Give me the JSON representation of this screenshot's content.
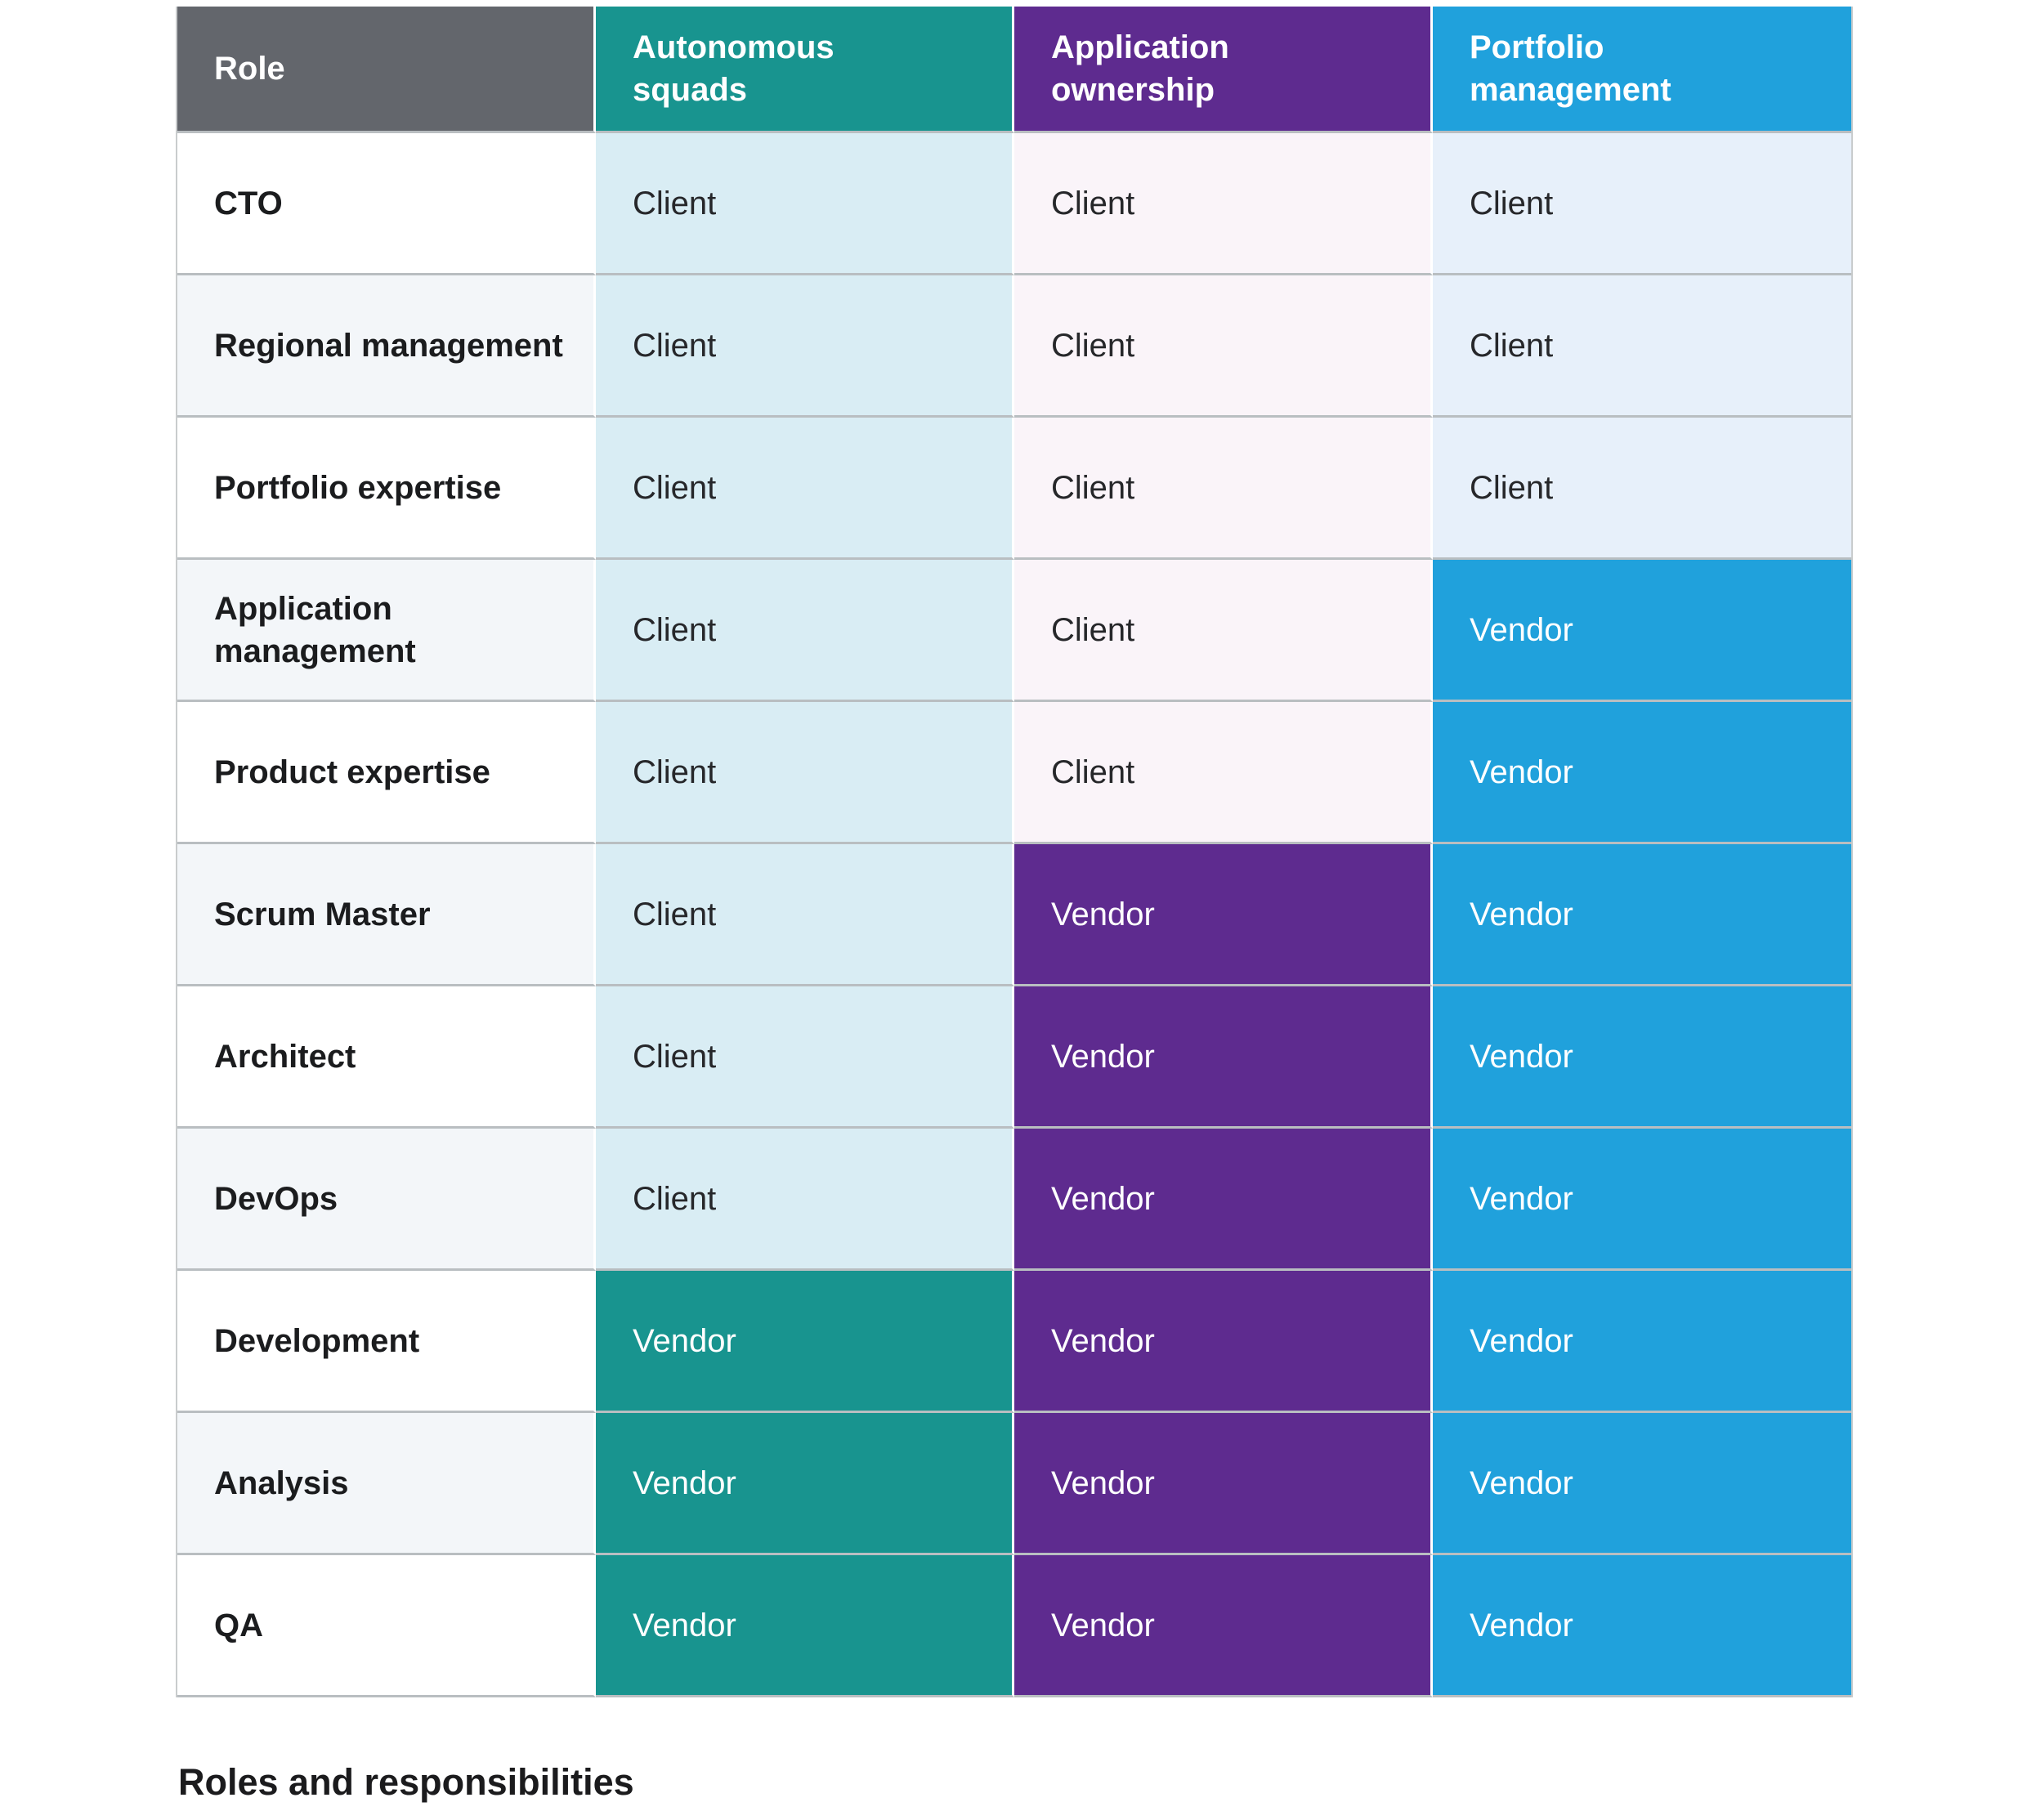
{
  "caption": "Roles and responsibilities",
  "table": {
    "columns": [
      {
        "id": "role",
        "label": "Role",
        "header_bg": "#63666c"
      },
      {
        "id": "autonomous_squads",
        "label": "Autonomous\nsquads",
        "header_bg": "#18948f"
      },
      {
        "id": "application_ownership",
        "label": "Application\nownership",
        "header_bg": "#5e2b8f"
      },
      {
        "id": "portfolio_management",
        "label": "Portfolio\nmanagement",
        "header_bg": "#20a1dc"
      }
    ],
    "rows": [
      {
        "role": "CTO",
        "cells": [
          "Client",
          "Client",
          "Client"
        ]
      },
      {
        "role": "Regional management",
        "cells": [
          "Client",
          "Client",
          "Client"
        ]
      },
      {
        "role": "Portfolio expertise",
        "cells": [
          "Client",
          "Client",
          "Client"
        ]
      },
      {
        "role": "Application\nmanagement",
        "cells": [
          "Client",
          "Client",
          "Vendor"
        ]
      },
      {
        "role": "Product expertise",
        "cells": [
          "Client",
          "Client",
          "Vendor"
        ]
      },
      {
        "role": "Scrum Master",
        "cells": [
          "Client",
          "Vendor",
          "Vendor"
        ]
      },
      {
        "role": "Architect",
        "cells": [
          "Client",
          "Vendor",
          "Vendor"
        ]
      },
      {
        "role": "DevOps",
        "cells": [
          "Client",
          "Vendor",
          "Vendor"
        ]
      },
      {
        "role": "Development",
        "cells": [
          "Vendor",
          "Vendor",
          "Vendor"
        ]
      },
      {
        "role": "Analysis",
        "cells": [
          "Vendor",
          "Vendor",
          "Vendor"
        ]
      },
      {
        "role": "QA",
        "cells": [
          "Vendor",
          "Vendor",
          "Vendor"
        ]
      }
    ]
  },
  "colors": {
    "header_role_bg": "#63666c",
    "header_autonomous_squads_bg": "#18948f",
    "header_application_ownership_bg": "#5e2b8f",
    "header_portfolio_management_bg": "#20a1dc",
    "client_autonomous_squads_bg": "#d9edf4",
    "client_application_ownership_bg": "#faf4f9",
    "client_portfolio_management_bg": "#e7f0fa",
    "vendor_autonomous_squads_bg": "#18948f",
    "vendor_application_ownership_bg": "#5e2b8f",
    "vendor_portfolio_management_bg": "#20a1dc",
    "role_row_alt_bg": "#f3f6f9",
    "row_divider": "#b9bec1",
    "header_text": "#ffffff",
    "body_text": "#26272a"
  },
  "chart_data": {
    "type": "table",
    "title": "Roles and responsibilities",
    "columns": [
      "Role",
      "Autonomous squads",
      "Application ownership",
      "Portfolio management"
    ],
    "rows": [
      [
        "CTO",
        "Client",
        "Client",
        "Client"
      ],
      [
        "Regional management",
        "Client",
        "Client",
        "Client"
      ],
      [
        "Portfolio expertise",
        "Client",
        "Client",
        "Client"
      ],
      [
        "Application management",
        "Client",
        "Client",
        "Vendor"
      ],
      [
        "Product expertise",
        "Client",
        "Client",
        "Vendor"
      ],
      [
        "Scrum Master",
        "Client",
        "Vendor",
        "Vendor"
      ],
      [
        "Architect",
        "Client",
        "Vendor",
        "Vendor"
      ],
      [
        "DevOps",
        "Client",
        "Vendor",
        "Vendor"
      ],
      [
        "Development",
        "Vendor",
        "Vendor",
        "Vendor"
      ],
      [
        "Analysis",
        "Vendor",
        "Vendor",
        "Vendor"
      ],
      [
        "QA",
        "Vendor",
        "Vendor",
        "Vendor"
      ]
    ]
  }
}
